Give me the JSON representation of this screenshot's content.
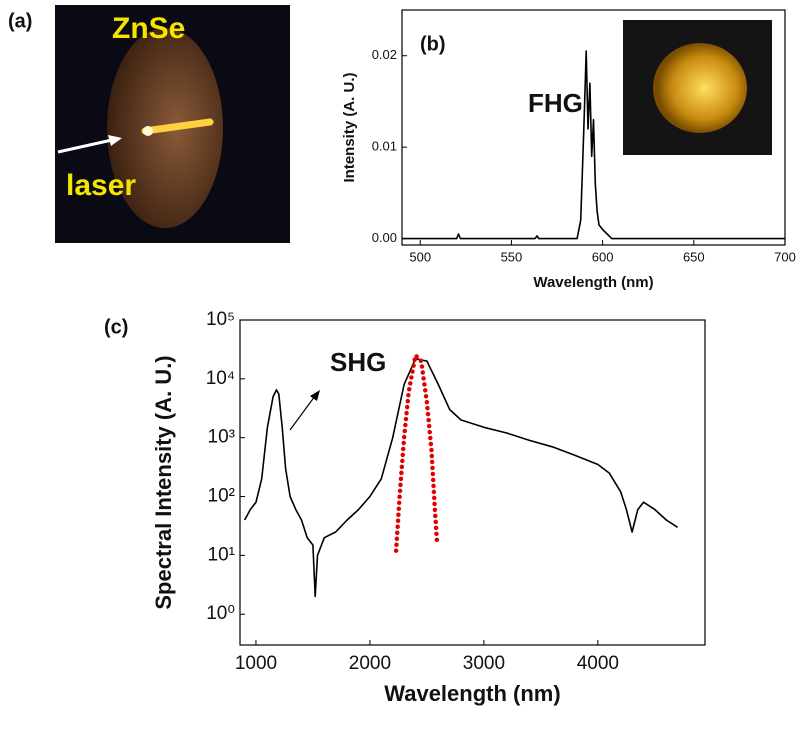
{
  "panel_a": {
    "label": "(a)",
    "material": "ZnSe",
    "beam": "laser"
  },
  "chart_data": [
    {
      "type": "line",
      "panel": "(b)",
      "xlabel": "Wavelength (nm)",
      "ylabel": "Intensity (A. U.)",
      "annotation": "FHG",
      "x": [
        490,
        520,
        521,
        522,
        563,
        564,
        565,
        586,
        588,
        589,
        590,
        591,
        592,
        593,
        594,
        595,
        596,
        597,
        598,
        600,
        603,
        605,
        700
      ],
      "series": [
        {
          "color": "#000000",
          "values": [
            0,
            0,
            0.0005,
            0,
            0,
            0.0003,
            0,
            0,
            0.002,
            0.008,
            0.014,
            0.0205,
            0.012,
            0.017,
            0.009,
            0.013,
            0.006,
            0.003,
            0.0015,
            0.001,
            0.0004,
            0,
            0
          ]
        }
      ],
      "xlim": [
        490,
        700
      ],
      "xticks": [
        500,
        550,
        600,
        650,
        700
      ],
      "ylim": [
        -0.0007,
        0.025
      ],
      "yticks": [
        {
          "value": 0,
          "label": "0.00"
        },
        0.01,
        0.02
      ]
    },
    {
      "type": "line",
      "panel": "(c)",
      "xlabel": "Wavelength (nm)",
      "ylabel": "Spectral Intensity (A. U.)",
      "annotation": "SHG",
      "log_y": true,
      "x": [
        900,
        950,
        1000,
        1050,
        1100,
        1150,
        1180,
        1200,
        1230,
        1260,
        1300,
        1350,
        1400,
        1450,
        1500,
        1520,
        1540,
        1600,
        1700,
        1800,
        1900,
        2000,
        2100,
        2200,
        2300,
        2400,
        2500,
        2600,
        2700,
        2800,
        3000,
        3200,
        3400,
        3600,
        3800,
        4000,
        4100,
        4200,
        4250,
        4300,
        4350,
        4400,
        4500,
        4600,
        4700
      ],
      "series": [
        {
          "color": "#000000",
          "style": "solid",
          "values": [
            40,
            60,
            80,
            200,
            1500,
            5000,
            6500,
            5500,
            1500,
            300,
            100,
            60,
            40,
            20,
            15,
            2,
            10,
            20,
            25,
            40,
            60,
            100,
            200,
            1000,
            8000,
            22000,
            20000,
            8000,
            3000,
            2000,
            1500,
            1200,
            900,
            700,
            500,
            350,
            250,
            120,
            60,
            25,
            60,
            80,
            60,
            40,
            30
          ]
        },
        {
          "color": "#e00000",
          "style": "dotted",
          "x": [
            2230,
            2260,
            2300,
            2340,
            2400,
            2450,
            2500,
            2540,
            2570,
            2590
          ],
          "values": [
            12,
            100,
            1000,
            6000,
            25000,
            20000,
            4000,
            600,
            60,
            15
          ]
        }
      ],
      "xlim": [
        860,
        4940
      ],
      "xticks": [
        1000,
        2000,
        3000,
        4000
      ],
      "ylim": [
        0.3,
        100000
      ],
      "yticks": [
        {
          "value": 1,
          "label": "10⁰"
        },
        {
          "value": 10,
          "label": "10¹"
        },
        {
          "value": 100,
          "label": "10²"
        },
        {
          "value": 1000,
          "label": "10³"
        },
        {
          "value": 10000,
          "label": "10⁴"
        },
        {
          "value": 100000,
          "label": "10⁵"
        }
      ]
    }
  ]
}
